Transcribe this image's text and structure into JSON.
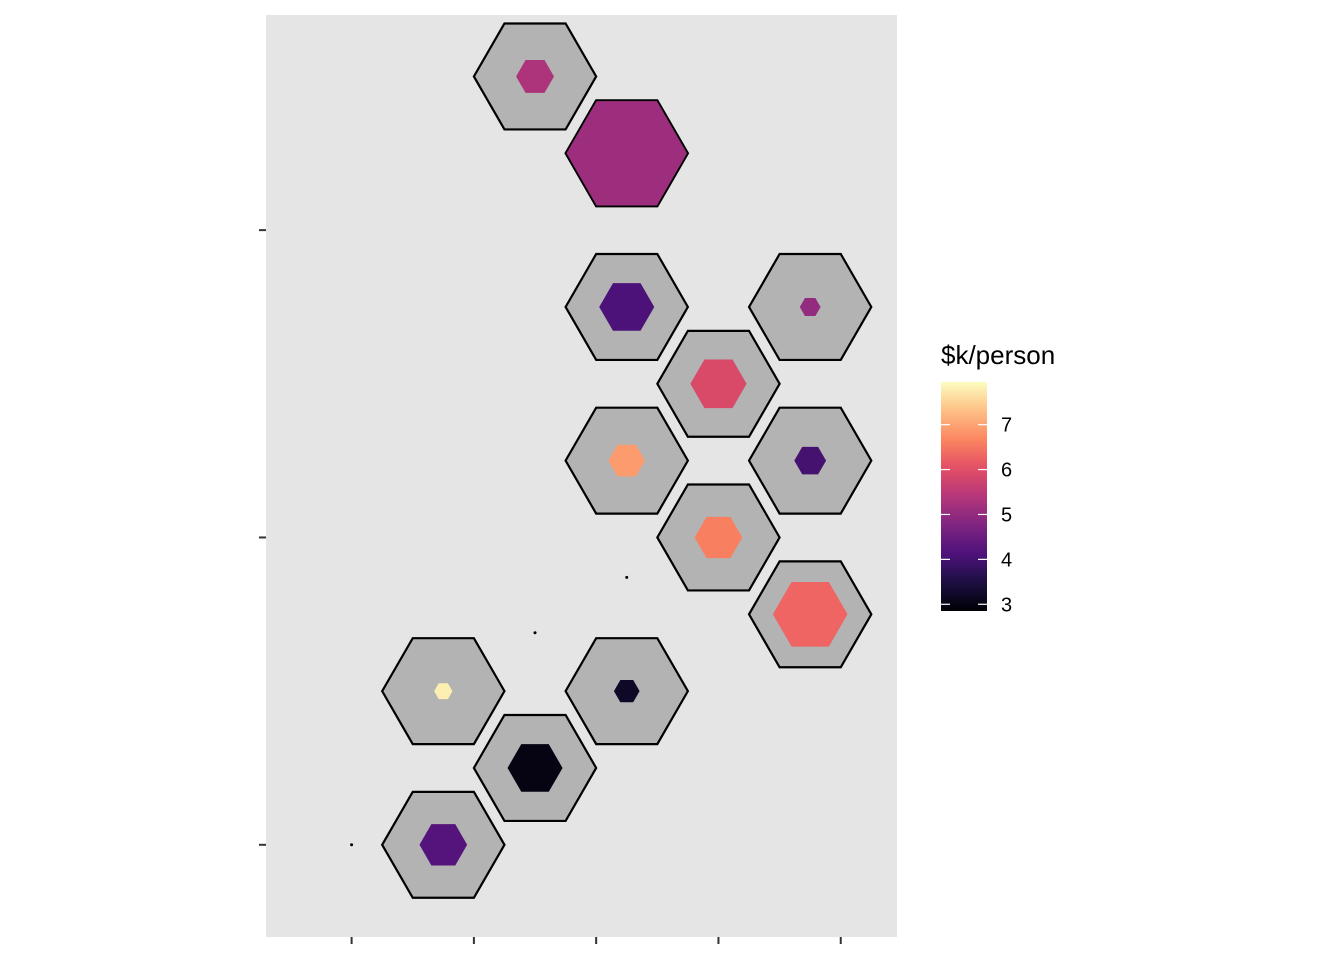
{
  "chart_data": {
    "type": "hexbin",
    "title": "",
    "xlabel": "",
    "ylabel": "",
    "grid": false,
    "panel_background": "#e5e5e5",
    "x_ticks": [
      1,
      2,
      3,
      4,
      5
    ],
    "y_ticks": [
      0,
      1,
      2
    ],
    "xlim": [
      0.3,
      5.46
    ],
    "ylim": [
      -0.3,
      2.7
    ],
    "hex_background_color": "#b3b3b3",
    "hex_outline_color": "#000000",
    "hexes": [
      {
        "col": 2.5,
        "row": 2.5,
        "value": 5.3,
        "size": 0.31
      },
      {
        "col": 3.25,
        "row": 2.25,
        "value": 5.1,
        "size": 1.0
      },
      {
        "col": 3.25,
        "row": 1.75,
        "value": 4.1,
        "size": 0.45
      },
      {
        "col": 4.0,
        "row": 1.5,
        "value": 5.9,
        "size": 0.46
      },
      {
        "col": 4.75,
        "row": 1.75,
        "value": 5.0,
        "size": 0.17
      },
      {
        "col": 3.25,
        "row": 1.25,
        "value": 6.9,
        "size": 0.3
      },
      {
        "col": 4.0,
        "row": 1.0,
        "value": 6.6,
        "size": 0.39
      },
      {
        "col": 4.75,
        "row": 1.25,
        "value": 4.0,
        "size": 0.26
      },
      {
        "col": 4.75,
        "row": 0.75,
        "value": 6.3,
        "size": 0.61
      },
      {
        "col": 1.75,
        "row": 0.5,
        "value": 7.8,
        "size": 0.15
      },
      {
        "col": 3.25,
        "row": 0.5,
        "value": 3.2,
        "size": 0.21
      },
      {
        "col": 2.5,
        "row": 0.25,
        "value": 3.0,
        "size": 0.45
      },
      {
        "col": 1.75,
        "row": 0.0,
        "value": 4.2,
        "size": 0.39
      }
    ],
    "points": [
      {
        "x": 3.25,
        "y": 0.87
      },
      {
        "x": 2.5,
        "y": 0.69
      },
      {
        "x": 1.0,
        "y": 0.0
      }
    ],
    "legend": {
      "title": "$k/person",
      "position": "right",
      "scale": "magma",
      "min": 2.85,
      "max": 7.95,
      "ticks": [
        "3",
        "4",
        "5",
        "6",
        "7"
      ]
    }
  }
}
